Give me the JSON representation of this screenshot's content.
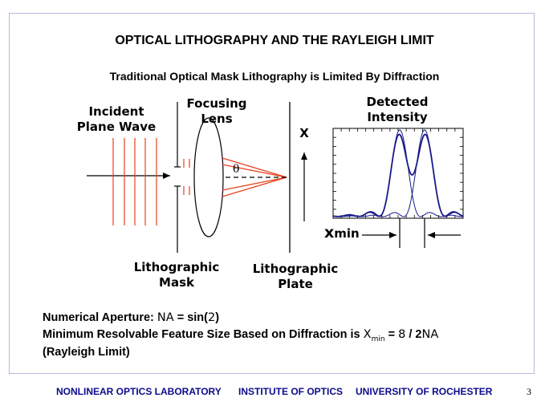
{
  "title": "OPTICAL LITHOGRAPHY AND THE RAYLEIGH LIMIT",
  "subtitle": "Traditional Optical Mask Lithography is Limited By Diffraction",
  "labels": {
    "incident_1": "Incident",
    "incident_2": "Plane Wave",
    "focusing_1": "Focusing",
    "focusing_2": "Lens",
    "detected_1": "Detected",
    "detected_2": "Intensity",
    "x_axis": "X",
    "theta": "θ",
    "xmin_main": "x",
    "xmin_sub": "min",
    "mask_1": "Lithographic",
    "mask_2": "Mask",
    "plate_1": "Lithographic",
    "plate_2": "Plate"
  },
  "formulas": {
    "line1_prefix": "Numerical Aperture:",
    "line1_na": "NA",
    "line1_mid": " = sin(",
    "line1_arg": "2",
    "line1_end": ")",
    "line2_prefix": "Minimum Resolvable Feature Size Based on Diffraction is ",
    "line2_x": "X",
    "line2_sub": "min",
    "line2_eq": " = ",
    "line2_8": "8",
    "line2_slash": " / 2",
    "line2_na": "NA",
    "line3": "(Rayleigh Limit)"
  },
  "footer": {
    "lab": "NONLINEAR OPTICS LABORATORY",
    "institute": "INSTITUTE OF OPTICS",
    "university": "UNIVERSITY OF ROCHESTER",
    "page": "3"
  },
  "colors": {
    "wave": "#e8401c",
    "curve": "#1a1a8a",
    "footer_text": "#0b0b8c",
    "frame": "#b8b8d8"
  }
}
